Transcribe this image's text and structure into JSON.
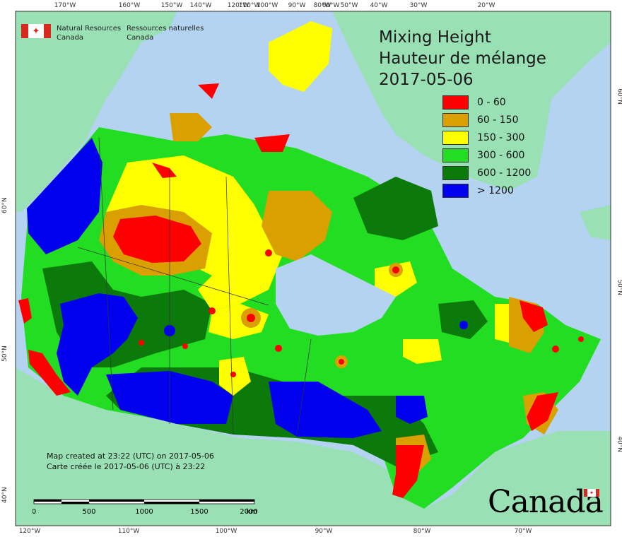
{
  "agency": {
    "name_en_1": "Natural Resources",
    "name_en_2": "Canada",
    "name_fr_1": "Ressources naturelles",
    "name_fr_2": "Canada"
  },
  "title": {
    "line1": "Mixing Height",
    "line2": "Hauteur de mélange",
    "date": "2017-05-06"
  },
  "legend": [
    {
      "label": "0 - 60",
      "color": "#ff0000"
    },
    {
      "label": "60 - 150",
      "color": "#daa000"
    },
    {
      "label": "150 - 300",
      "color": "#ffff00"
    },
    {
      "label": "300 - 600",
      "color": "#22dd22"
    },
    {
      "label": "600 - 1200",
      "color": "#0b7a0b"
    },
    {
      "label": "> 1200",
      "color": "#0000ee"
    }
  ],
  "credits": {
    "line_en": "Map created at 23:22 (UTC) on 2017-05-06",
    "line_fr": "Carte créée le 2017-05-06 (UTC) à 23:22"
  },
  "scale": {
    "labels": [
      "0",
      "500",
      "1000",
      "1500",
      "2000"
    ],
    "unit": "km"
  },
  "graticule": {
    "top": [
      "170°W",
      "160°W",
      "150°W",
      "140°W",
      "120°W",
      "110°W",
      "100°W",
      "90°W",
      "80°W",
      "60°W",
      "50°W",
      "40°W",
      "30°W",
      "20°W"
    ],
    "bottom": [
      "120°W",
      "110°W",
      "100°W",
      "90°W",
      "80°W",
      "70°W"
    ],
    "left": [
      "60°N",
      "50°N",
      "40°N"
    ],
    "right": [
      "60°N",
      "50°N",
      "40°N"
    ]
  },
  "wordmark": "Canada",
  "colors": {
    "ocean": "#b3d3f0",
    "land_outside": "#99e0b4",
    "frame": "#333333"
  }
}
